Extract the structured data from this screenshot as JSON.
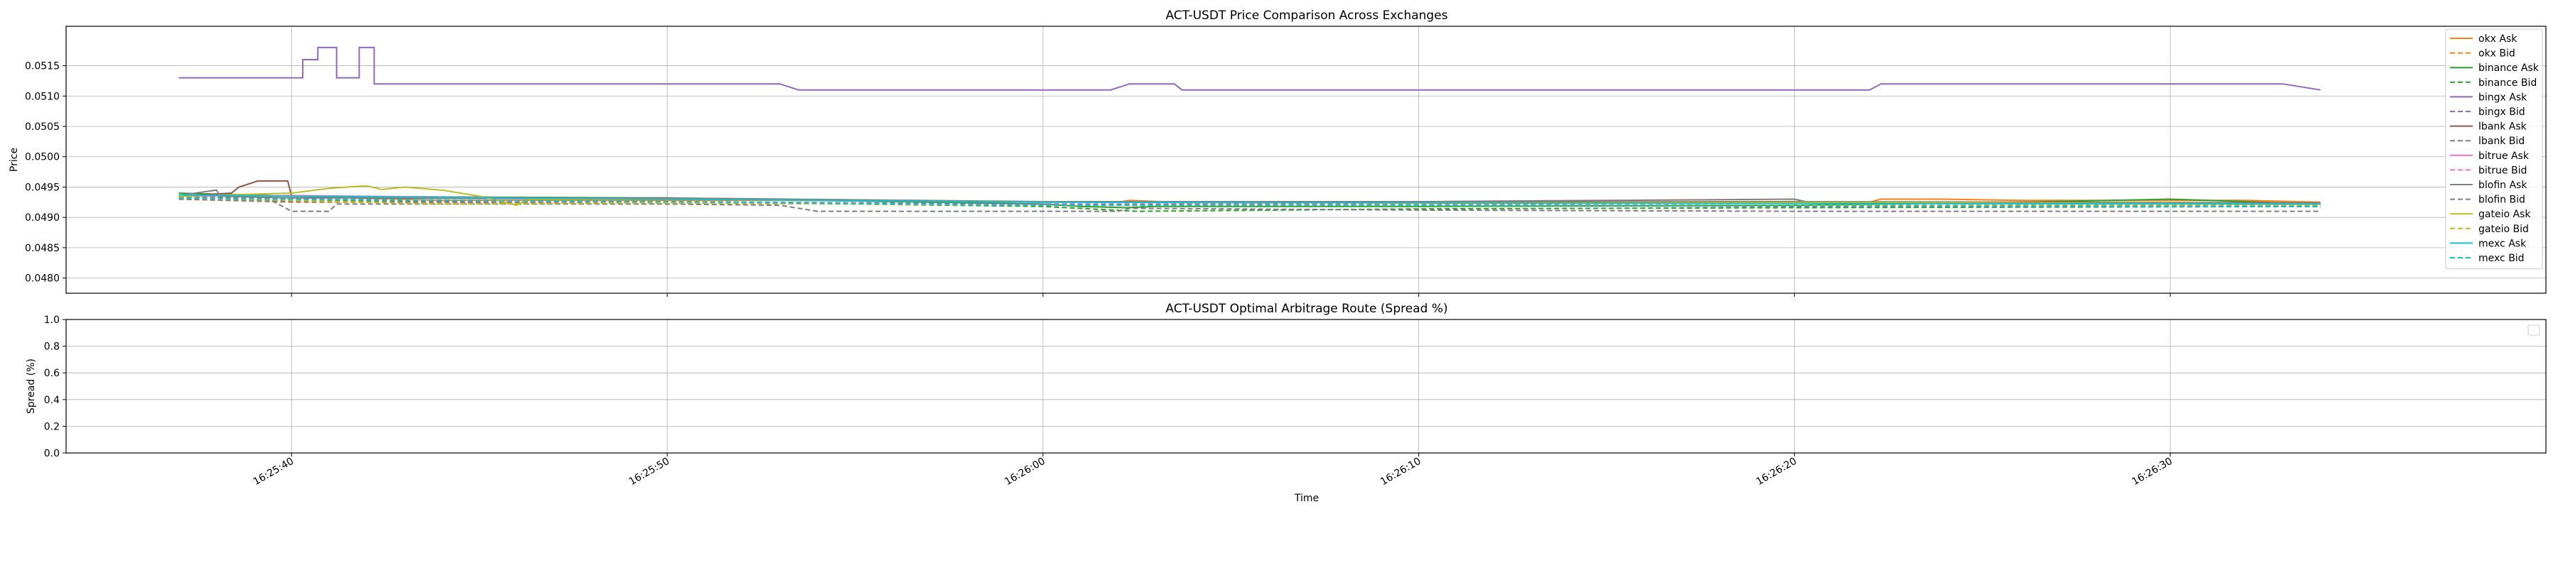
{
  "chart_data": [
    {
      "type": "line",
      "title": "ACT-USDT Price Comparison Across Exchanges",
      "xlabel": "",
      "ylabel": "Price",
      "xlim": [
        "16:25:34",
        "16:26:40"
      ],
      "ylim": [
        0.04775,
        0.05215
      ],
      "yticks": [
        "0.0480",
        "0.0485",
        "0.0490",
        "0.0495",
        "0.0500",
        "0.0505",
        "0.0510",
        "0.0515"
      ],
      "xticks": [
        "16:25:40",
        "16:25:50",
        "16:26:00",
        "16:26:10",
        "16:26:20",
        "16:26:30"
      ],
      "grid": true,
      "legend_position": "top-right",
      "series": [
        {
          "name": "okx Ask",
          "color": "#ff7f0e",
          "dash": "solid",
          "points": [
            [
              "16:25:37",
              0.04935
            ],
            [
              "16:25:38.5",
              0.04938
            ],
            [
              "16:25:40",
              0.04935
            ],
            [
              "16:25:44",
              0.04928
            ],
            [
              "16:25:53",
              0.04928
            ],
            [
              "16:26:02",
              0.04925
            ],
            [
              "16:26:02.3",
              0.04928
            ],
            [
              "16:26:03.5",
              0.04925
            ],
            [
              "16:26:16",
              0.04925
            ],
            [
              "16:26:22",
              0.04925
            ],
            [
              "16:26:22.3",
              0.0493
            ],
            [
              "16:26:24",
              0.0493
            ],
            [
              "16:26:26",
              0.04928
            ],
            [
              "16:26:32",
              0.04928
            ],
            [
              "16:26:34",
              0.04925
            ]
          ]
        },
        {
          "name": "okx Bid",
          "color": "#ff7f0e",
          "dash": "dashed",
          "points": [
            [
              "16:25:37",
              0.0493
            ],
            [
              "16:25:40",
              0.04925
            ],
            [
              "16:25:50",
              0.04924
            ],
            [
              "16:26:00",
              0.0492
            ],
            [
              "16:26:10",
              0.04921
            ],
            [
              "16:26:20",
              0.0492
            ],
            [
              "16:26:34",
              0.04921
            ]
          ]
        },
        {
          "name": "binance Ask",
          "color": "#2ca02c",
          "dash": "solid",
          "points": [
            [
              "16:25:37",
              0.0494
            ],
            [
              "16:25:40",
              0.04935
            ],
            [
              "16:25:50",
              0.04932
            ],
            [
              "16:26:00",
              0.04922
            ],
            [
              "16:26:01",
              0.04918
            ],
            [
              "16:26:02.2",
              0.04916
            ],
            [
              "16:26:03",
              0.04918
            ],
            [
              "16:26:10",
              0.04918
            ],
            [
              "16:26:20",
              0.0492
            ],
            [
              "16:26:26",
              0.04925
            ],
            [
              "16:26:30",
              0.0493
            ],
            [
              "16:26:34",
              0.04922
            ]
          ]
        },
        {
          "name": "binance Bid",
          "color": "#2ca02c",
          "dash": "dashed",
          "points": [
            [
              "16:25:37",
              0.04935
            ],
            [
              "16:25:40",
              0.04928
            ],
            [
              "16:25:50",
              0.04926
            ],
            [
              "16:26:00",
              0.04918
            ],
            [
              "16:26:02.5",
              0.0491
            ],
            [
              "16:26:10",
              0.04914
            ],
            [
              "16:26:20",
              0.04916
            ],
            [
              "16:26:34",
              0.04918
            ]
          ]
        },
        {
          "name": "bingx Ask",
          "color": "#9467bd",
          "dash": "solid",
          "points": [
            [
              "16:25:37",
              0.0513
            ],
            [
              "16:25:40.3",
              0.0513
            ],
            [
              "16:25:40.3",
              0.0516
            ],
            [
              "16:25:40.7",
              0.0516
            ],
            [
              "16:25:40.7",
              0.0518
            ],
            [
              "16:25:41.2",
              0.0518
            ],
            [
              "16:25:41.2",
              0.0513
            ],
            [
              "16:25:41.8",
              0.0513
            ],
            [
              "16:25:41.8",
              0.0518
            ],
            [
              "16:25:42.2",
              0.0518
            ],
            [
              "16:25:42.2",
              0.0512
            ],
            [
              "16:25:53",
              0.0512
            ],
            [
              "16:25:53.5",
              0.0511
            ],
            [
              "16:26:01.8",
              0.0511
            ],
            [
              "16:26:02.3",
              0.0512
            ],
            [
              "16:26:03.5",
              0.0512
            ],
            [
              "16:26:03.7",
              0.0511
            ],
            [
              "16:26:22",
              0.0511
            ],
            [
              "16:26:22.3",
              0.0512
            ],
            [
              "16:26:33",
              0.0512
            ],
            [
              "16:26:34",
              0.0511
            ]
          ]
        },
        {
          "name": "bingx Bid",
          "color": "#9467bd",
          "dash": "dashed",
          "points": [
            [
              "16:25:37",
              0.04935
            ],
            [
              "16:25:40",
              0.0493
            ],
            [
              "16:25:50",
              0.04926
            ],
            [
              "16:26:00",
              0.04922
            ],
            [
              "16:26:10",
              0.04922
            ],
            [
              "16:26:20",
              0.0492
            ],
            [
              "16:26:34",
              0.04918
            ]
          ]
        },
        {
          "name": "lbank Ask",
          "color": "#8c564b",
          "dash": "solid",
          "points": [
            [
              "16:25:37",
              0.04935
            ],
            [
              "16:25:38.4",
              0.0494
            ],
            [
              "16:25:38.6",
              0.0495
            ],
            [
              "16:25:39.1",
              0.0496
            ],
            [
              "16:25:39.9",
              0.0496
            ],
            [
              "16:25:40",
              0.04935
            ],
            [
              "16:25:42",
              0.04932
            ],
            [
              "16:25:50",
              0.0493
            ],
            [
              "16:26:00",
              0.04925
            ],
            [
              "16:26:10",
              0.04925
            ],
            [
              "16:26:20",
              0.04926
            ],
            [
              "16:26:34",
              0.04922
            ]
          ]
        },
        {
          "name": "lbank Bid",
          "color": "#7f7f7f",
          "dash": "dashed",
          "points": [
            [
              "16:25:37",
              0.04935
            ],
            [
              "16:25:38",
              0.04935
            ],
            [
              "16:25:38.5",
              0.0493
            ],
            [
              "16:25:39.4",
              0.0493
            ],
            [
              "16:25:40",
              0.0491
            ],
            [
              "16:25:41",
              0.0491
            ],
            [
              "16:25:41.2",
              0.04922
            ],
            [
              "16:25:50",
              0.04922
            ],
            [
              "16:25:53",
              0.0492
            ],
            [
              "16:25:54",
              0.0491
            ],
            [
              "16:26:02",
              0.0491
            ],
            [
              "16:26:02.3",
              0.04915
            ],
            [
              "16:26:10",
              0.04912
            ],
            [
              "16:26:20",
              0.0491
            ],
            [
              "16:26:34",
              0.0491
            ]
          ]
        },
        {
          "name": "bitrue Ask",
          "color": "#e377c2",
          "dash": "solid",
          "points": [
            [
              "16:25:37",
              0.04935
            ],
            [
              "16:25:40",
              0.04936
            ],
            [
              "16:25:50",
              0.0493
            ],
            [
              "16:26:00",
              0.04925
            ],
            [
              "16:26:10",
              0.04924
            ],
            [
              "16:26:20",
              0.04924
            ],
            [
              "16:26:34",
              0.04922
            ]
          ]
        },
        {
          "name": "bitrue Bid",
          "color": "#e377c2",
          "dash": "dashed",
          "points": [
            [
              "16:25:37",
              0.04932
            ],
            [
              "16:25:40",
              0.0493
            ],
            [
              "16:25:50",
              0.04925
            ],
            [
              "16:26:00",
              0.0492
            ],
            [
              "16:26:10",
              0.0492
            ],
            [
              "16:26:20",
              0.04919
            ],
            [
              "16:26:34",
              0.04918
            ]
          ]
        },
        {
          "name": "blofin Ask",
          "color": "#7f7f7f",
          "dash": "solid",
          "points": [
            [
              "16:25:37",
              0.04936
            ],
            [
              "16:25:38",
              0.04945
            ],
            [
              "16:25:38.1",
              0.04935
            ],
            [
              "16:25:40",
              0.04932
            ],
            [
              "16:25:50",
              0.04932
            ],
            [
              "16:26:00",
              0.04926
            ],
            [
              "16:26:10",
              0.04926
            ],
            [
              "16:26:20",
              0.0493
            ],
            [
              "16:26:20.3",
              0.04926
            ],
            [
              "16:26:34",
              0.04924
            ]
          ]
        },
        {
          "name": "blofin Bid",
          "color": "#7f7f7f",
          "dash": "dashed",
          "points": [
            [
              "16:25:37",
              0.0493
            ],
            [
              "16:25:40",
              0.04926
            ],
            [
              "16:25:50",
              0.04924
            ],
            [
              "16:26:00",
              0.0492
            ],
            [
              "16:26:10",
              0.0492
            ],
            [
              "16:26:20",
              0.04918
            ],
            [
              "16:26:34",
              0.04918
            ]
          ]
        },
        {
          "name": "gateio Ask",
          "color": "#bcbd22",
          "dash": "solid",
          "points": [
            [
              "16:25:37",
              0.04935
            ],
            [
              "16:25:40",
              0.0494
            ],
            [
              "16:25:41",
              0.04948
            ],
            [
              "16:25:42",
              0.04952
            ],
            [
              "16:25:42.4",
              0.04946
            ],
            [
              "16:25:43",
              0.0495
            ],
            [
              "16:25:44",
              0.04945
            ],
            [
              "16:25:45",
              0.04935
            ],
            [
              "16:25:46",
              0.0492
            ],
            [
              "16:25:46.3",
              0.0493
            ],
            [
              "16:25:50",
              0.0493
            ],
            [
              "16:26:00",
              0.04925
            ],
            [
              "16:26:10",
              0.04924
            ],
            [
              "16:26:20",
              0.04925
            ],
            [
              "16:26:34",
              0.04922
            ]
          ]
        },
        {
          "name": "gateio Bid",
          "color": "#bcbd22",
          "dash": "dashed",
          "points": [
            [
              "16:25:37",
              0.04933
            ],
            [
              "16:25:40",
              0.04928
            ],
            [
              "16:25:44",
              0.04922
            ],
            [
              "16:25:50",
              0.04924
            ],
            [
              "16:26:00",
              0.0492
            ],
            [
              "16:26:10",
              0.04921
            ],
            [
              "16:26:20",
              0.0492
            ],
            [
              "16:26:34",
              0.0492
            ]
          ]
        },
        {
          "name": "mexc Ask",
          "color": "#17becf",
          "dash": "solid",
          "points": [
            [
              "16:25:37",
              0.04937
            ],
            [
              "16:25:40",
              0.04935
            ],
            [
              "16:25:50",
              0.0493
            ],
            [
              "16:26:00",
              0.04925
            ],
            [
              "16:26:10",
              0.04924
            ],
            [
              "16:26:20",
              0.04923
            ],
            [
              "16:26:34",
              0.04922
            ]
          ]
        },
        {
          "name": "mexc Bid",
          "color": "#17becf",
          "dash": "dashed",
          "points": [
            [
              "16:25:37",
              0.04932
            ],
            [
              "16:25:40",
              0.0493
            ],
            [
              "16:25:50",
              0.04926
            ],
            [
              "16:26:00",
              0.0492
            ],
            [
              "16:26:10",
              0.0492
            ],
            [
              "16:26:20",
              0.04919
            ],
            [
              "16:26:34",
              0.04918
            ]
          ]
        }
      ]
    },
    {
      "type": "line",
      "title": "ACT-USDT Optimal Arbitrage Route (Spread %)",
      "xlabel": "Time",
      "ylabel": "Spread (%)",
      "xlim": [
        "16:25:34",
        "16:26:40"
      ],
      "ylim": [
        0.0,
        1.0
      ],
      "yticks": [
        "0.0",
        "0.2",
        "0.4",
        "0.6",
        "0.8",
        "1.0"
      ],
      "xticks": [
        "16:25:40",
        "16:25:50",
        "16:26:00",
        "16:26:10",
        "16:26:20",
        "16:26:30"
      ],
      "grid": true,
      "legend_position": "top-right",
      "series": []
    }
  ]
}
